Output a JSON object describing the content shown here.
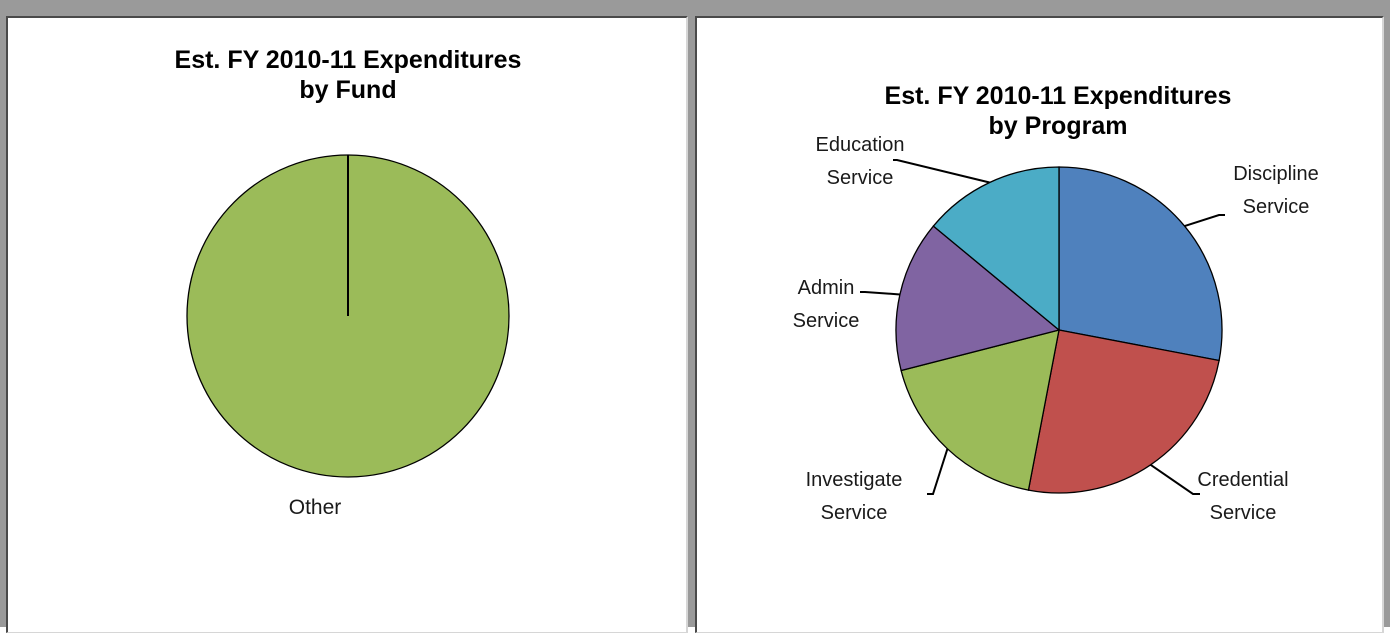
{
  "chart_data": [
    {
      "type": "pie",
      "title": "Est. FY 2010-11 Expenditures by Fund",
      "title_lines": [
        "Est. FY 2010-11 Expenditures",
        "by Fund"
      ],
      "categories": [
        "Other"
      ],
      "values": [
        100
      ],
      "labels": [
        [
          "Other"
        ]
      ],
      "colors": [
        "#9BBB59"
      ],
      "legend": "none"
    },
    {
      "type": "pie",
      "title": "Est. FY 2010-11 Expenditures by Program",
      "title_lines": [
        "Est. FY 2010-11 Expenditures",
        "by Program"
      ],
      "categories": [
        "Discipline Service",
        "Credential Service",
        "Investigate Service",
        "Admin Service",
        "Education Service"
      ],
      "values": [
        28,
        25,
        18,
        15,
        14
      ],
      "labels": [
        [
          "Discipline",
          "Service"
        ],
        [
          "Credential",
          "Service"
        ],
        [
          "Investigate",
          "Service"
        ],
        [
          "Admin",
          "Service"
        ],
        [
          "Education",
          "Service"
        ]
      ],
      "colors": [
        "#4F81BD",
        "#C0504D",
        "#9BBB59",
        "#8064A2",
        "#4BACC6"
      ],
      "legend": "none"
    }
  ]
}
